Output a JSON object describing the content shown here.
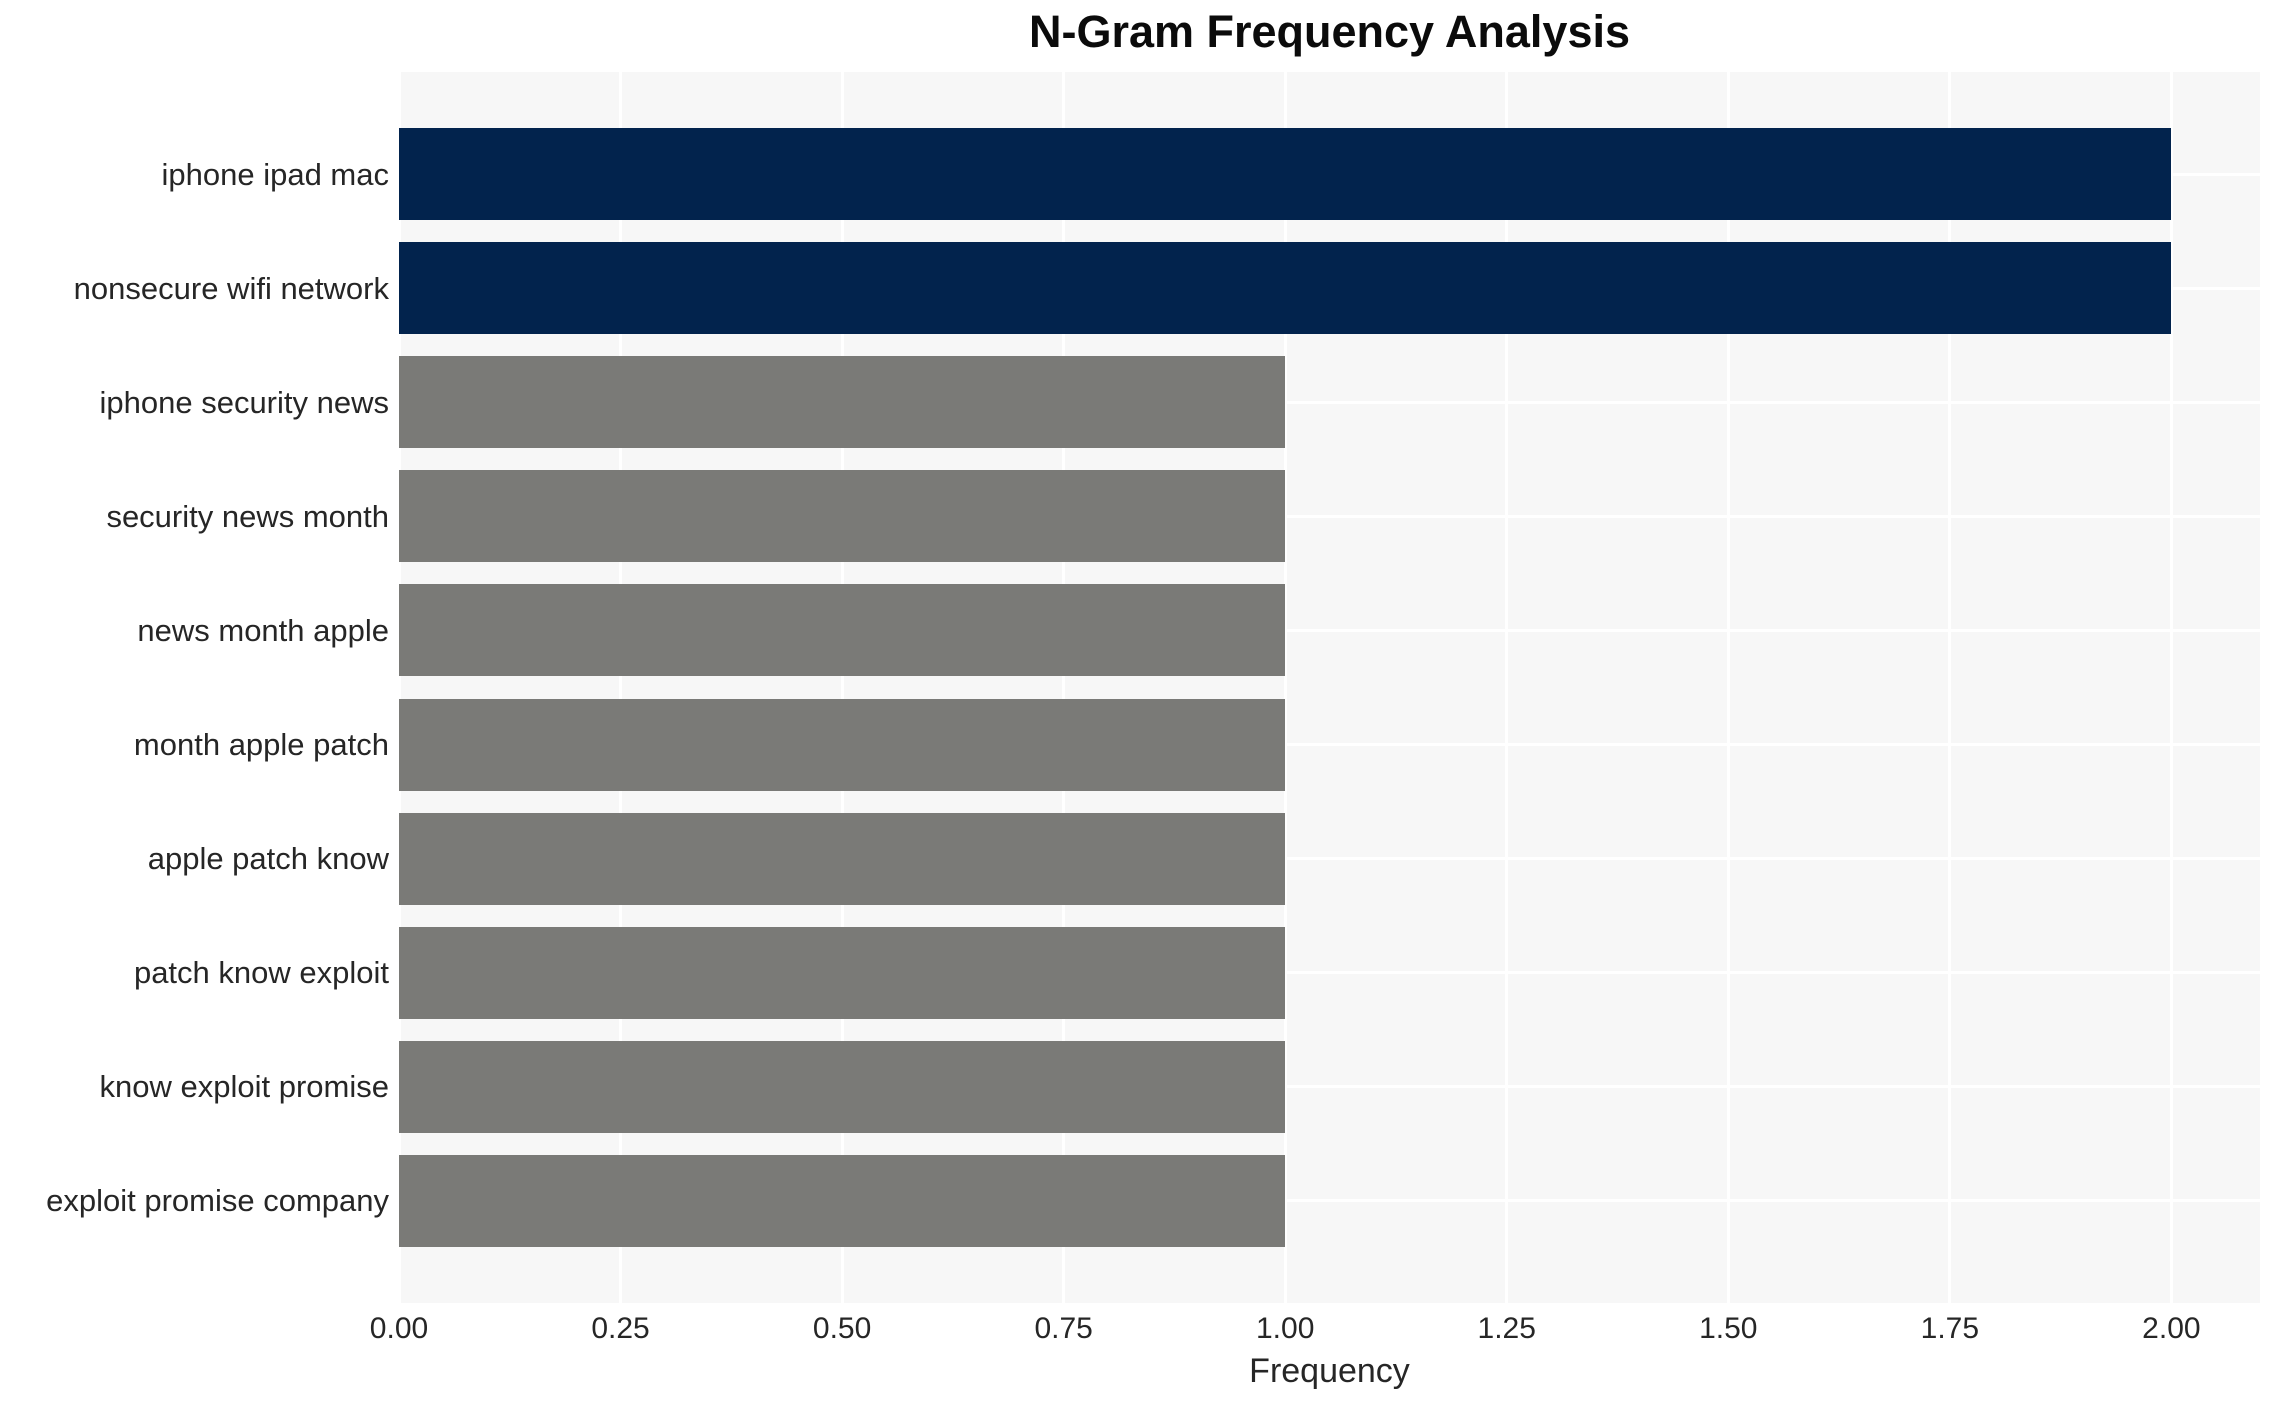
{
  "chart_data": {
    "type": "bar",
    "orientation": "horizontal",
    "title": "N-Gram Frequency Analysis",
    "xlabel": "Frequency",
    "ylabel": "",
    "categories": [
      "iphone ipad mac",
      "nonsecure wifi network",
      "iphone security news",
      "security news month",
      "news month apple",
      "month apple patch",
      "apple patch know",
      "patch know exploit",
      "know exploit promise",
      "exploit promise company"
    ],
    "values": [
      2,
      2,
      1,
      1,
      1,
      1,
      1,
      1,
      1,
      1
    ],
    "bar_colors": [
      "#02234d",
      "#02234d",
      "#7a7a77",
      "#7a7a77",
      "#7a7a77",
      "#7a7a77",
      "#7a7a77",
      "#7a7a77",
      "#7a7a77",
      "#7a7a77"
    ],
    "xlim": [
      0,
      2.1
    ],
    "xticks": [
      0.0,
      0.25,
      0.5,
      0.75,
      1.0,
      1.25,
      1.5,
      1.75,
      2.0
    ],
    "xtick_labels": [
      "0.00",
      "0.25",
      "0.50",
      "0.75",
      "1.00",
      "1.25",
      "1.50",
      "1.75",
      "2.00"
    ],
    "grid": true,
    "legend": false,
    "colors": {
      "highlight_bar": "#02234d",
      "default_bar": "#7a7a77",
      "plot_background": "#f7f7f7",
      "gridline": "#ffffff",
      "tick_text": "#262626",
      "title_text": "#0b0b0b"
    }
  }
}
